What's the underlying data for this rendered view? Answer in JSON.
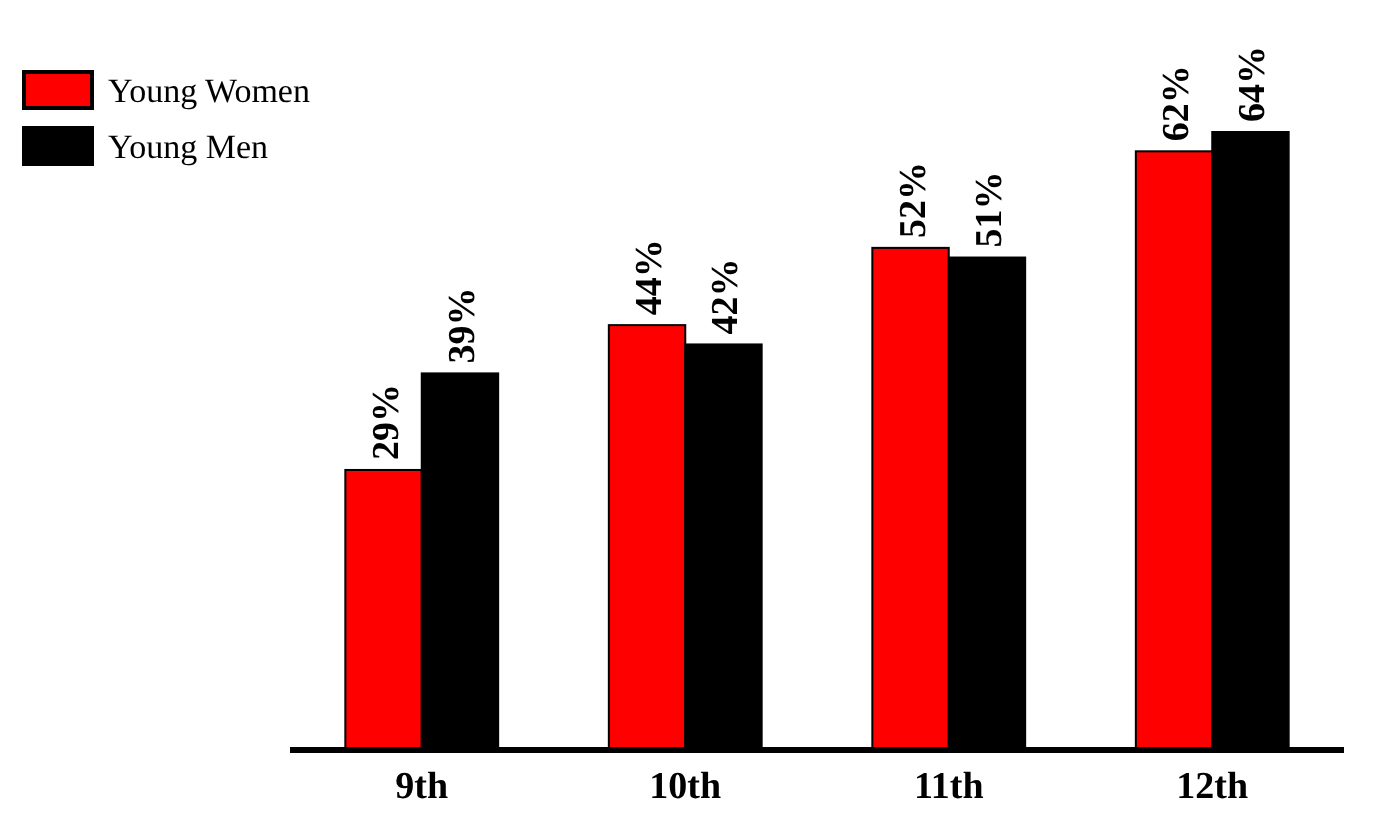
{
  "chart_data": {
    "type": "bar",
    "categories": [
      "9th",
      "10th",
      "11th",
      "12th"
    ],
    "series": [
      {
        "name": "Young Women",
        "color": "#ff0000",
        "values": [
          29,
          44,
          52,
          62
        ],
        "value_labels": [
          "29%",
          "44%",
          "52%",
          "62%"
        ]
      },
      {
        "name": "Young Men",
        "color": "#000000",
        "values": [
          39,
          42,
          51,
          64
        ],
        "value_labels": [
          "39%",
          "42%",
          "51%",
          "64%"
        ]
      }
    ],
    "tick_labels": "x",
    "legend": "top left"
  }
}
